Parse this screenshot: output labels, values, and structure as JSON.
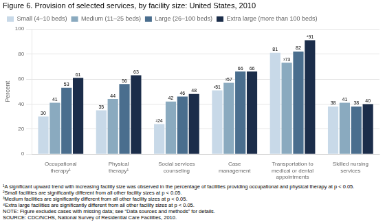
{
  "chart_data": {
    "type": "bar",
    "title": "Figure 6. Provision of selected services, by facility size: United States, 2010",
    "y_label": "Percent",
    "categories": [
      "Occupational\ntherapy¹",
      "Physical\ntherapy¹",
      "Social services\ncounseling",
      "Case\nmanagement",
      "Transportation to\nmedical or dental\nappointments",
      "Skilled nursing\nservices"
    ],
    "series": [
      {
        "name": "Small (4–10 beds)",
        "color": "#c8d9e8",
        "values": [
          30,
          35,
          24,
          51,
          81,
          38
        ],
        "value_labels": [
          "30",
          "35",
          "²24",
          "²51",
          "81",
          "38"
        ]
      },
      {
        "name": "Medium (11–25 beds)",
        "color": "#8aaabf",
        "values": [
          41,
          44,
          42,
          57,
          73,
          41
        ],
        "value_labels": [
          "41",
          "44",
          "42",
          "²57",
          "³73",
          "41"
        ]
      },
      {
        "name": "Large (26–100 beds)",
        "color": "#4a6e8e",
        "values": [
          53,
          56,
          46,
          66,
          82,
          38
        ]
      },
      {
        "name": "Extra large (more than 100 beds)",
        "color": "#1b2d4a",
        "values": [
          61,
          63,
          48,
          66,
          91,
          40
        ],
        "value_labels": [
          "61",
          "63",
          "48",
          "66",
          "⁴91",
          "40"
        ]
      }
    ],
    "ylim": [
      0,
      100
    ],
    "yticks": [
      0,
      20,
      40,
      60,
      80,
      100
    ],
    "grid": true,
    "legend": "top-left",
    "data_labels": true,
    "annotations": [
      "¹A significant upward trend with increasing facility size was observed in the percentage of facilities providing occupational and physical therapy at p < 0.05.",
      "²Small facilities are significantly different from all other facility sizes at p < 0.05.",
      "³Medium facilities are significantly different from all other facility sizes at p < 0.05.",
      "⁴Extra large facilities are significantly different from all other facility sizes at p < 0.05.",
      "NOTE: Figure excludes cases with missing data; see “Data sources and methods” for details.",
      "SOURCE: CDC/NCHS, National Survey of Residential Care Facilities, 2010."
    ]
  }
}
